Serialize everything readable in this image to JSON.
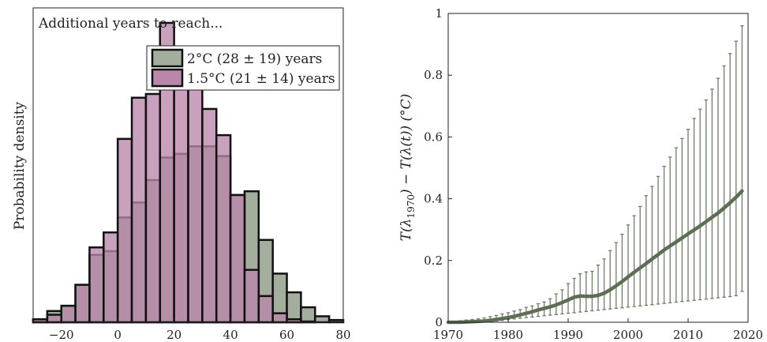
{
  "chart_data": [
    {
      "type": "histogram",
      "annotation": "Additional years to reach...",
      "ylabel": "Probability density",
      "xlim": [
        -30,
        80
      ],
      "xticks": [
        -20,
        0,
        20,
        40,
        60,
        80
      ],
      "bin_width": 5,
      "legend_position": "top-right",
      "legend": [
        "2°C (28 ± 19) years",
        "1.5°C (21 ± 14) years"
      ],
      "series": [
        {
          "name": "2°C (28 ± 19) years",
          "color": "#a3ae9d",
          "bin_left_edges": [
            -30,
            -25,
            -20,
            -15,
            -10,
            -5,
            0,
            5,
            10,
            15,
            20,
            25,
            30,
            35,
            40,
            45,
            50,
            55,
            60,
            65,
            70,
            75
          ],
          "values": [
            0.004,
            0.015,
            0.022,
            0.05,
            0.09,
            0.095,
            0.14,
            0.16,
            0.19,
            0.22,
            0.225,
            0.235,
            0.235,
            0.222,
            0.17,
            0.175,
            0.11,
            0.065,
            0.04,
            0.02,
            0.008,
            0.003
          ]
        },
        {
          "name": "1.5°C (21 ± 14) years",
          "color": "#b887ab",
          "bin_left_edges": [
            -30,
            -25,
            -20,
            -15,
            -10,
            -5,
            0,
            5,
            10,
            15,
            20,
            25,
            30,
            35,
            40,
            45,
            50,
            55,
            60,
            65,
            70,
            75
          ],
          "values": [
            0.004,
            0.01,
            0.022,
            0.05,
            0.1,
            0.12,
            0.245,
            0.3,
            0.305,
            0.4,
            0.35,
            0.345,
            0.285,
            0.25,
            0.17,
            0.07,
            0.035,
            0.012,
            0.004,
            0.001,
            0.0,
            0.0
          ]
        }
      ]
    },
    {
      "type": "line",
      "ylabel": "T(λ1970) − T(λ(t)) (°C)",
      "ylabel_parts": {
        "main": "T(λ",
        "sub": "1970",
        "rest": ") − T(λ(t)) (°C)"
      },
      "xlim": [
        1970,
        2020
      ],
      "ylim": [
        0,
        1
      ],
      "xticks": [
        1970,
        1980,
        1990,
        2000,
        2010,
        2020
      ],
      "yticks": [
        0,
        0.2,
        0.4,
        0.6,
        0.8,
        1
      ],
      "ytick_labels": [
        "0",
        "0.2",
        "0.4",
        "0.6",
        "0.8",
        "1"
      ],
      "line_color": "#5d6e55",
      "errorbar_color": "#6f7e68",
      "series": [
        {
          "x": [
            1970,
            1971,
            1972,
            1973,
            1974,
            1975,
            1976,
            1977,
            1978,
            1979,
            1980,
            1981,
            1982,
            1983,
            1984,
            1985,
            1986,
            1987,
            1988,
            1989,
            1990,
            1991,
            1992,
            1993,
            1994,
            1995,
            1996,
            1997,
            1998,
            1999,
            2000,
            2001,
            2002,
            2003,
            2004,
            2005,
            2006,
            2007,
            2008,
            2009,
            2010,
            2011,
            2012,
            2013,
            2014,
            2015,
            2016,
            2017,
            2018,
            2019
          ],
          "y": [
            0,
            0,
            0,
            0.001,
            0.002,
            0.003,
            0.004,
            0.006,
            0.009,
            0.012,
            0.015,
            0.019,
            0.024,
            0.029,
            0.034,
            0.04,
            0.045,
            0.05,
            0.056,
            0.064,
            0.072,
            0.081,
            0.085,
            0.084,
            0.084,
            0.087,
            0.094,
            0.105,
            0.118,
            0.132,
            0.147,
            0.162,
            0.176,
            0.19,
            0.205,
            0.219,
            0.234,
            0.247,
            0.26,
            0.273,
            0.286,
            0.299,
            0.312,
            0.326,
            0.34,
            0.354,
            0.37,
            0.387,
            0.405,
            0.425
          ],
          "lower": [
            0,
            0,
            0,
            0,
            0,
            0,
            0.001,
            0.002,
            0.004,
            0.006,
            0.009,
            0.011,
            0.013,
            0.015,
            0.017,
            0.019,
            0.021,
            0.023,
            0.025,
            0.027,
            0.029,
            0.031,
            0.033,
            0.035,
            0.037,
            0.039,
            0.041,
            0.043,
            0.045,
            0.047,
            0.049,
            0.051,
            0.053,
            0.055,
            0.057,
            0.059,
            0.061,
            0.063,
            0.065,
            0.067,
            0.069,
            0.071,
            0.073,
            0.075,
            0.077,
            0.079,
            0.081,
            0.083,
            0.086,
            0.1
          ],
          "upper": [
            0.001,
            0.003,
            0.005,
            0.007,
            0.009,
            0.011,
            0.014,
            0.018,
            0.022,
            0.027,
            0.031,
            0.036,
            0.041,
            0.048,
            0.053,
            0.06,
            0.066,
            0.076,
            0.092,
            0.105,
            0.125,
            0.142,
            0.157,
            0.163,
            0.165,
            0.185,
            0.205,
            0.232,
            0.258,
            0.285,
            0.315,
            0.345,
            0.375,
            0.41,
            0.44,
            0.472,
            0.505,
            0.535,
            0.565,
            0.595,
            0.625,
            0.66,
            0.69,
            0.72,
            0.755,
            0.79,
            0.83,
            0.87,
            0.91,
            0.96
          ]
        }
      ]
    }
  ]
}
